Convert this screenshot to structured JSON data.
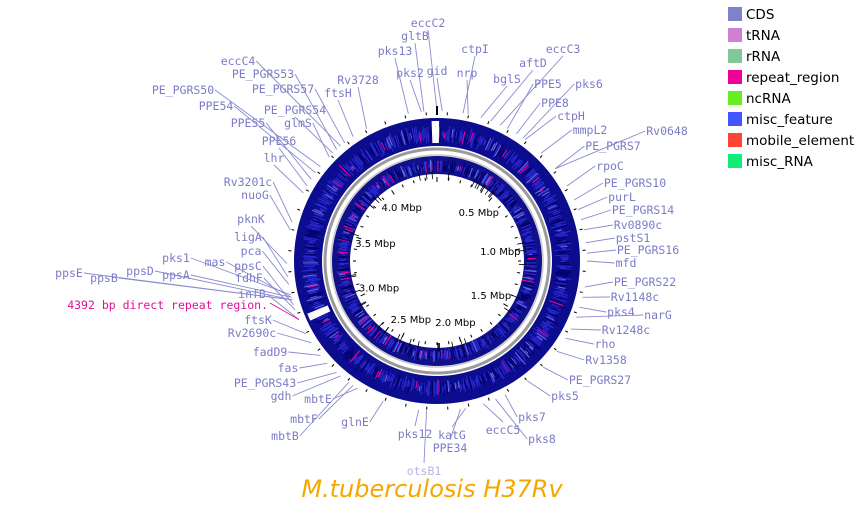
{
  "title": "M.tuberculosis H37Rv",
  "colors": {
    "title": "#f5a700",
    "label": "#7b7bc8",
    "label_faded": "#b5b5e3",
    "repeat_label": "#dd1199",
    "outer_ring": "#0c0c8f",
    "inner_ring": "#10108c",
    "backbone": "#9a9a9a",
    "leader": "#8a8ad0"
  },
  "legend": [
    {
      "label": "CDS",
      "color": "#8080cc"
    },
    {
      "label": "tRNA",
      "color": "#d080d0"
    },
    {
      "label": "rRNA",
      "color": "#80c898"
    },
    {
      "label": "repeat_region",
      "color": "#ee0099"
    },
    {
      "label": "ncRNA",
      "color": "#66ee22"
    },
    {
      "label": "misc_feature",
      "color": "#4455ff"
    },
    {
      "label": "mobile_element",
      "color": "#ff4433"
    },
    {
      "label": "misc_RNA",
      "color": "#11ee77"
    }
  ],
  "size_labels": [
    "0.5 Mbp",
    "1.0 Mbp",
    "1.5 Mbp",
    "2.0 Mbp",
    "2.5 Mbp",
    "3.0 Mbp",
    "3.5 Mbp",
    "4.0 Mbp"
  ],
  "annotation": "4392 bp direct repeat region.",
  "genes": [
    {
      "name": "eccC2",
      "angle": 0
    },
    {
      "name": "gltB",
      "angle": -5
    },
    {
      "name": "gid",
      "angle": 2
    },
    {
      "name": "pks13",
      "angle": -11
    },
    {
      "name": "pks2",
      "angle": -6
    },
    {
      "name": "ctpI",
      "angle": 10
    },
    {
      "name": "nrp",
      "angle": 12
    },
    {
      "name": "eccC3",
      "angle": 25
    },
    {
      "name": "aftD",
      "angle": 21
    },
    {
      "name": "bglS",
      "angle": 17
    },
    {
      "name": "PPE5",
      "angle": 28
    },
    {
      "name": "pks6",
      "angle": 35
    },
    {
      "name": "PPE8",
      "angle": 32
    },
    {
      "name": "ctpH",
      "angle": 36
    },
    {
      "name": "mmpL2",
      "angle": 44
    },
    {
      "name": "Rv0648",
      "angle": 52
    },
    {
      "name": "PE_PGRS7",
      "angle": 52
    },
    {
      "name": "rpoC",
      "angle": 60
    },
    {
      "name": "PE_PGRS10",
      "angle": 66
    },
    {
      "name": "purL",
      "angle": 70
    },
    {
      "name": "PE_PGRS14",
      "angle": 74
    },
    {
      "name": "Rv0890c",
      "angle": 78
    },
    {
      "name": "pstS1",
      "angle": 83
    },
    {
      "name": "PE_PGRS16",
      "angle": 87
    },
    {
      "name": "mfd",
      "angle": 90
    },
    {
      "name": "PE_PGRS22",
      "angle": 100
    },
    {
      "name": "Rv1148c",
      "angle": 104
    },
    {
      "name": "pks4",
      "angle": 108
    },
    {
      "name": "narG",
      "angle": 112
    },
    {
      "name": "Rv1248c",
      "angle": 117
    },
    {
      "name": "rho",
      "angle": 121
    },
    {
      "name": "Rv1358",
      "angle": 127
    },
    {
      "name": "PE_PGRS27",
      "angle": 135
    },
    {
      "name": "pks5",
      "angle": 143
    },
    {
      "name": "pks7",
      "angle": 153
    },
    {
      "name": "pks8",
      "angle": 157
    },
    {
      "name": "eccC5",
      "angle": 162
    },
    {
      "name": "katG",
      "angle": 169
    },
    {
      "name": "PPE34",
      "angle": 171
    },
    {
      "name": "pks12",
      "angle": 187
    },
    {
      "name": "otsB1",
      "angle": 184
    },
    {
      "name": "glnE",
      "angle": 201
    },
    {
      "name": "mbtE",
      "angle": 212
    },
    {
      "name": "mbtF",
      "angle": 214
    },
    {
      "name": "mbtB",
      "angle": 216
    },
    {
      "name": "gdh",
      "angle": 220
    },
    {
      "name": "PE_PGRS43",
      "angle": 222
    },
    {
      "name": "fas",
      "angle": 227
    },
    {
      "name": "fadD9",
      "angle": 231
    },
    {
      "name": "Rv2690c",
      "angle": 237
    },
    {
      "name": "ftsK",
      "angle": 241
    },
    {
      "name": "infB",
      "angle": 247
    },
    {
      "name": "fdhF",
      "angle": 251
    },
    {
      "name": "ppsC",
      "angle": 253
    },
    {
      "name": "ppsE",
      "angle": 255
    },
    {
      "name": "ppsB",
      "angle": 255
    },
    {
      "name": "ppsD",
      "angle": 255
    },
    {
      "name": "mas",
      "angle": 256
    },
    {
      "name": "ppsA",
      "angle": 256
    },
    {
      "name": "pks1",
      "angle": 257
    },
    {
      "name": "pca",
      "angle": 261
    },
    {
      "name": "ligA",
      "angle": 264
    },
    {
      "name": "pknK",
      "angle": 269
    },
    {
      "name": "nuoG",
      "angle": 282
    },
    {
      "name": "Rv3201c",
      "angle": 285
    },
    {
      "name": "lhr",
      "angle": 297
    },
    {
      "name": "PPE56",
      "angle": 300
    },
    {
      "name": "PPE55",
      "angle": 303
    },
    {
      "name": "PPE54",
      "angle": 306
    },
    {
      "name": "PE_PGRS50",
      "angle": 309
    },
    {
      "name": "glmS",
      "angle": 314
    },
    {
      "name": "PE_PGRS54",
      "angle": 316
    },
    {
      "name": "PE_PGRS53",
      "angle": 318
    },
    {
      "name": "eccC4",
      "angle": 320
    },
    {
      "name": "PE_PGRS57",
      "angle": 322
    },
    {
      "name": "ftsH",
      "angle": 326
    },
    {
      "name": "Rv3728",
      "angle": 332
    }
  ]
}
